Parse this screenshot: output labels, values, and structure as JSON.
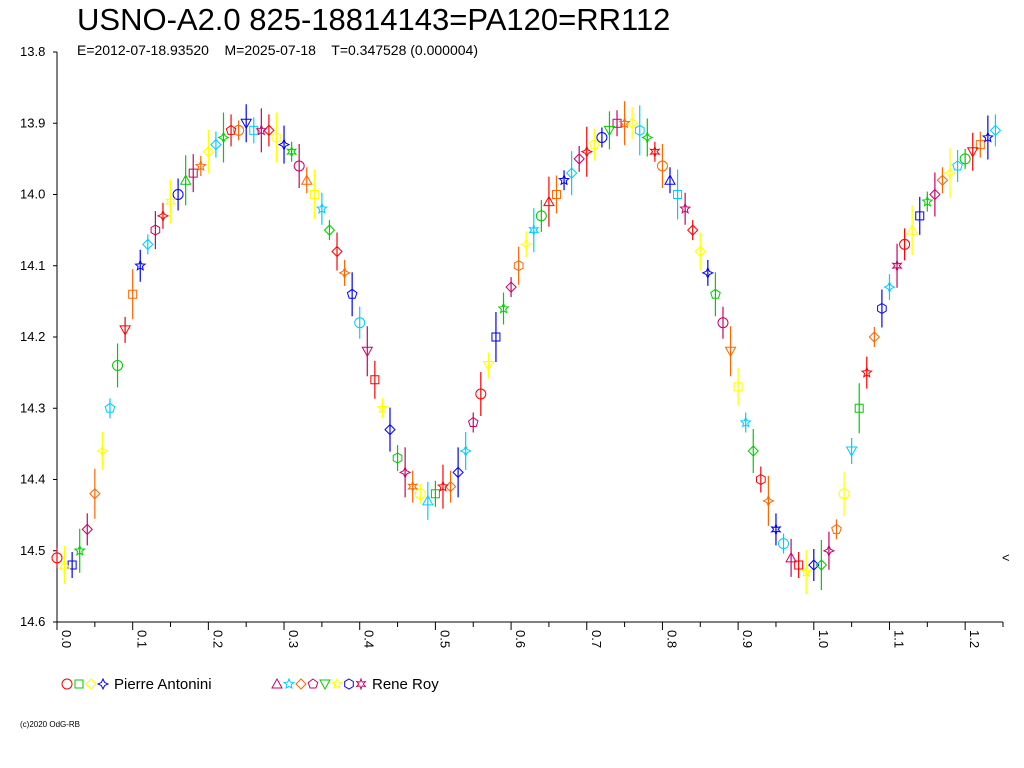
{
  "chart_data": {
    "type": "scatter",
    "title": "USNO-A2.0 825-18814143=PA120=RR112",
    "subtitle": "E=2012-07-18.93520    M=2025-07-18    T=0.347528 (0.000004)",
    "copyright": "(c)2020 OdG-RB",
    "xlabel": "",
    "ylabel": "",
    "xlim": [
      0.0,
      1.25
    ],
    "ylim": [
      14.6,
      13.8
    ],
    "y_reversed": true,
    "xticks": [
      "0.0",
      "0.1",
      "0.2",
      "0.3",
      "0.4",
      "0.5",
      "0.6",
      "0.7",
      "0.8",
      "0.9",
      "1.0",
      "1.1",
      "1.2"
    ],
    "yticks": [
      "13.8",
      "13.9",
      "14.0",
      "14.1",
      "14.2",
      "14.3",
      "14.4",
      "14.5",
      "14.6"
    ],
    "right_marker": "<",
    "legend_position": "bottom",
    "series": [
      {
        "name": "Pierre Antonini",
        "legend_symbols": [
          "circle",
          "square",
          "diamond",
          "star4"
        ],
        "symbol_colors": [
          "#ff0000",
          "#00cc00",
          "#ffff00",
          "#0000ff"
        ],
        "x": [
          0.0,
          0.02,
          0.04,
          0.06,
          0.08,
          0.1,
          0.12,
          0.14,
          0.16,
          0.18,
          0.2,
          0.22,
          0.24,
          0.26,
          0.28,
          0.3,
          0.32,
          0.34,
          0.36,
          0.38,
          0.4,
          0.42,
          0.44,
          0.46,
          0.48,
          0.5,
          0.52,
          0.54,
          0.56,
          0.58,
          0.6,
          0.62,
          0.64,
          0.66,
          0.68,
          0.7,
          0.72,
          0.74,
          0.76,
          0.78,
          0.8,
          0.82,
          0.84,
          0.86,
          0.88,
          0.9,
          0.92,
          0.94,
          0.96,
          0.98,
          1.0,
          1.02,
          1.04,
          1.06,
          1.08,
          1.1,
          1.12,
          1.14,
          1.16,
          1.18,
          1.2,
          1.22,
          1.24
        ],
        "y": [
          14.51,
          14.52,
          14.47,
          14.36,
          14.24,
          14.14,
          14.07,
          14.03,
          14.0,
          13.97,
          13.94,
          13.92,
          13.91,
          13.91,
          13.91,
          13.93,
          13.96,
          14.0,
          14.05,
          14.11,
          14.18,
          14.26,
          14.33,
          14.39,
          14.42,
          14.42,
          14.41,
          14.36,
          14.28,
          14.2,
          14.13,
          14.07,
          14.03,
          14.0,
          13.97,
          13.94,
          13.92,
          13.9,
          13.9,
          13.92,
          13.96,
          14.0,
          14.05,
          14.11,
          14.18,
          14.27,
          14.36,
          14.43,
          14.49,
          14.52,
          14.52,
          14.5,
          14.42,
          14.3,
          14.2,
          14.13,
          14.07,
          14.03,
          14.0,
          13.97,
          13.95,
          13.93,
          13.91
        ]
      },
      {
        "name": "Rene Roy",
        "legend_symbols": [
          "triangle-up",
          "star5",
          "diamond",
          "pentagon",
          "triangle-down",
          "star5",
          "hexagon",
          "star6"
        ],
        "symbol_colors": [
          "#cc0066",
          "#00ccff",
          "#ff6600",
          "#cc0066",
          "#00cc00",
          "#ffff00",
          "#0000ff",
          "#cc0066"
        ],
        "x": [
          0.01,
          0.03,
          0.05,
          0.07,
          0.09,
          0.11,
          0.13,
          0.15,
          0.17,
          0.19,
          0.21,
          0.23,
          0.25,
          0.27,
          0.29,
          0.31,
          0.33,
          0.35,
          0.37,
          0.39,
          0.41,
          0.43,
          0.45,
          0.47,
          0.49,
          0.51,
          0.53,
          0.55,
          0.57,
          0.59,
          0.61,
          0.63,
          0.65,
          0.67,
          0.69,
          0.71,
          0.73,
          0.75,
          0.77,
          0.79,
          0.81,
          0.83,
          0.85,
          0.87,
          0.89,
          0.91,
          0.93,
          0.95,
          0.97,
          0.99,
          1.01,
          1.03,
          1.05,
          1.07,
          1.09,
          1.11,
          1.13,
          1.15,
          1.17,
          1.19,
          1.21,
          1.23
        ],
        "y": [
          14.52,
          14.5,
          14.42,
          14.3,
          14.19,
          14.1,
          14.05,
          14.01,
          13.98,
          13.96,
          13.93,
          13.91,
          13.9,
          13.91,
          13.92,
          13.94,
          13.98,
          14.02,
          14.08,
          14.14,
          14.22,
          14.3,
          14.37,
          14.41,
          14.43,
          14.41,
          14.39,
          14.32,
          14.24,
          14.16,
          14.1,
          14.05,
          14.01,
          13.98,
          13.95,
          13.93,
          13.91,
          13.9,
          13.91,
          13.94,
          13.98,
          14.02,
          14.08,
          14.14,
          14.22,
          14.32,
          14.4,
          14.47,
          14.51,
          14.53,
          14.52,
          14.47,
          14.36,
          14.25,
          14.16,
          14.1,
          14.05,
          14.01,
          13.98,
          13.96,
          13.94,
          13.92
        ]
      }
    ],
    "point_colors_pool": [
      "#ff0000",
      "#0000ff",
      "#cc0066",
      "#ffff00",
      "#00cc00",
      "#ff6600",
      "#00ccff"
    ]
  }
}
